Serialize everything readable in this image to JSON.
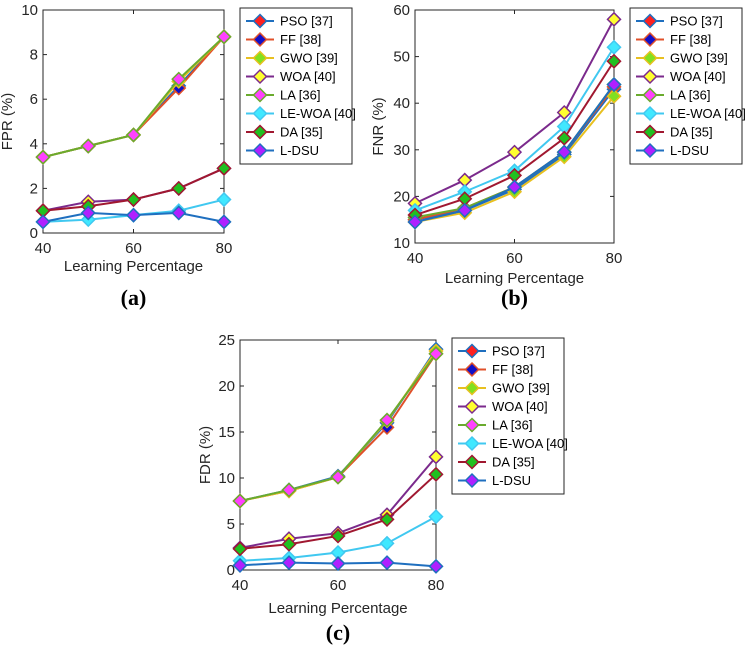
{
  "series_styles": [
    {
      "name": "PSO [37]",
      "line": "#1f6fbf",
      "fill": "#ff2020"
    },
    {
      "name": "FF [38]",
      "line": "#e0502a",
      "fill": "#1010c8"
    },
    {
      "name": "GWO [39]",
      "line": "#e8c020",
      "fill": "#80e020"
    },
    {
      "name": "WOA [40]",
      "line": "#7b2a8c",
      "fill": "#ffff30"
    },
    {
      "name": "LA [36]",
      "line": "#6aab2e",
      "fill": "#ff40ff"
    },
    {
      "name": "LE-WOA [40]",
      "line": "#40c8f0",
      "fill": "#40e8ff"
    },
    {
      "name": "DA [35]",
      "line": "#a01830",
      "fill": "#20c020"
    },
    {
      "name": "L-DSU",
      "line": "#1f6fbf",
      "fill": "#b020ff"
    }
  ],
  "chart_data": [
    {
      "type": "line",
      "caption": "(a)",
      "xlabel": "Learning Percentage",
      "ylabel": "FPR (%)",
      "x": [
        40,
        50,
        60,
        70,
        80
      ],
      "xticks": [
        40,
        60,
        80
      ],
      "ylim": [
        0,
        10
      ],
      "yticks": [
        0,
        2,
        4,
        6,
        8,
        10
      ],
      "series": [
        {
          "name": "PSO [37]",
          "values": [
            3.4,
            3.9,
            4.4,
            6.6,
            8.8
          ]
        },
        {
          "name": "FF [38]",
          "values": [
            3.4,
            3.9,
            4.4,
            6.5,
            8.8
          ]
        },
        {
          "name": "GWO [39]",
          "values": [
            3.4,
            3.9,
            4.4,
            6.8,
            8.8
          ]
        },
        {
          "name": "WOA [40]",
          "values": [
            1.0,
            1.4,
            1.5,
            2.0,
            2.9
          ]
        },
        {
          "name": "LA [36]",
          "values": [
            3.4,
            3.9,
            4.4,
            6.9,
            8.8
          ]
        },
        {
          "name": "LE-WOA [40]",
          "values": [
            0.5,
            0.6,
            0.8,
            1.0,
            1.5
          ]
        },
        {
          "name": "DA [35]",
          "values": [
            1.0,
            1.2,
            1.5,
            2.0,
            2.9
          ]
        },
        {
          "name": "L-DSU",
          "values": [
            0.5,
            0.9,
            0.8,
            0.9,
            0.5
          ]
        }
      ]
    },
    {
      "type": "line",
      "caption": "(b)",
      "xlabel": "Learning Percentage",
      "ylabel": "FNR (%)",
      "x": [
        40,
        50,
        60,
        70,
        80
      ],
      "xticks": [
        40,
        60,
        80
      ],
      "ylim": [
        10,
        60
      ],
      "yticks": [
        10,
        20,
        30,
        40,
        50,
        60
      ],
      "series": [
        {
          "name": "PSO [37]",
          "values": [
            15.0,
            17.0,
            21.5,
            29.0,
            43.0
          ]
        },
        {
          "name": "FF [38]",
          "values": [
            15.0,
            17.5,
            22.0,
            29.5,
            43.5
          ]
        },
        {
          "name": "GWO [39]",
          "values": [
            14.5,
            16.5,
            21.0,
            28.5,
            41.5
          ]
        },
        {
          "name": "WOA [40]",
          "values": [
            18.5,
            23.5,
            29.5,
            38.0,
            58.0
          ]
        },
        {
          "name": "LA [36]",
          "values": [
            15.5,
            17.5,
            22.0,
            29.5,
            44.0
          ]
        },
        {
          "name": "LE-WOA [40]",
          "values": [
            17.0,
            21.0,
            25.5,
            35.0,
            52.0
          ]
        },
        {
          "name": "DA [35]",
          "values": [
            16.0,
            19.5,
            24.5,
            32.5,
            49.0
          ]
        },
        {
          "name": "L-DSU",
          "values": [
            14.5,
            17.0,
            22.0,
            29.5,
            44.0
          ]
        }
      ]
    },
    {
      "type": "line",
      "caption": "(c)",
      "xlabel": "Learning Percentage",
      "ylabel": "FDR (%)",
      "x": [
        40,
        50,
        60,
        70,
        80
      ],
      "xticks": [
        40,
        60,
        80
      ],
      "ylim": [
        0,
        25
      ],
      "yticks": [
        0,
        5,
        10,
        15,
        20,
        25
      ],
      "series": [
        {
          "name": "PSO [37]",
          "values": [
            7.5,
            8.7,
            10.2,
            16.0,
            24.0
          ]
        },
        {
          "name": "FF [38]",
          "values": [
            7.5,
            8.6,
            10.1,
            15.5,
            23.5
          ]
        },
        {
          "name": "GWO [39]",
          "values": [
            7.5,
            8.6,
            10.1,
            16.2,
            23.8
          ]
        },
        {
          "name": "WOA [40]",
          "values": [
            2.4,
            3.4,
            4.0,
            6.0,
            12.3
          ]
        },
        {
          "name": "LA [36]",
          "values": [
            7.5,
            8.7,
            10.1,
            16.3,
            23.5
          ]
        },
        {
          "name": "LE-WOA [40]",
          "values": [
            1.0,
            1.3,
            1.9,
            2.9,
            5.8
          ]
        },
        {
          "name": "DA [35]",
          "values": [
            2.3,
            2.8,
            3.7,
            5.5,
            10.4
          ]
        },
        {
          "name": "L-DSU",
          "values": [
            0.5,
            0.8,
            0.7,
            0.8,
            0.4
          ]
        }
      ]
    }
  ]
}
